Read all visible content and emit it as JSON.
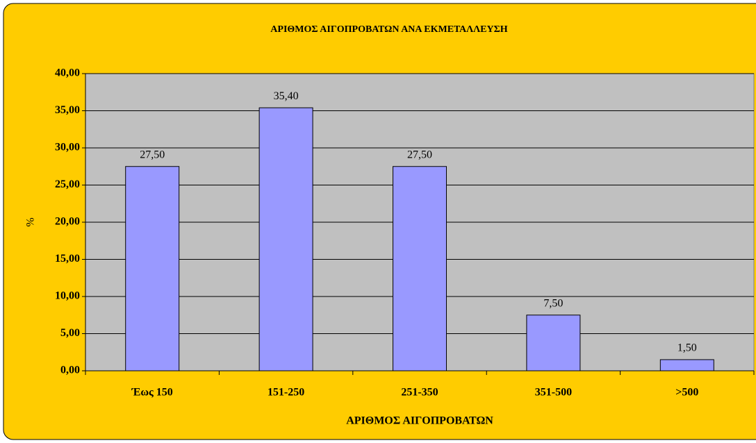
{
  "chart_data": {
    "type": "bar",
    "title": "ΑΡΙΘΜΟΣ ΑΙΓΟΠΡΟΒΑΤΩΝ ΑΝΑ ΕΚΜΕΤΑΛΛΕΥΣΗ",
    "x_label": "ΑΡΙΘΜΟΣ ΑΙΓΟΠΡΟΒΑΤΩΝ",
    "y_label": "%",
    "categories": [
      "Έως 150",
      "151-250",
      "251-350",
      "351-500",
      ">500"
    ],
    "values": [
      27.5,
      35.4,
      27.5,
      7.5,
      1.5
    ],
    "value_labels": [
      "27,50",
      "35,40",
      "27,50",
      "7,50",
      "1,50"
    ],
    "color": "#9999ff",
    "ylim": [
      0,
      40
    ],
    "yticks": [
      {
        "value": 0,
        "label": "0,00"
      },
      {
        "value": 5,
        "label": "5,00"
      },
      {
        "value": 10,
        "label": "10,00"
      },
      {
        "value": 15,
        "label": "15,00"
      },
      {
        "value": 20,
        "label": "20,00"
      },
      {
        "value": 25,
        "label": "25,00"
      },
      {
        "value": 30,
        "label": "30,00"
      },
      {
        "value": 35,
        "label": "35,00"
      },
      {
        "value": 40,
        "label": "40,00"
      }
    ],
    "grid": true
  }
}
